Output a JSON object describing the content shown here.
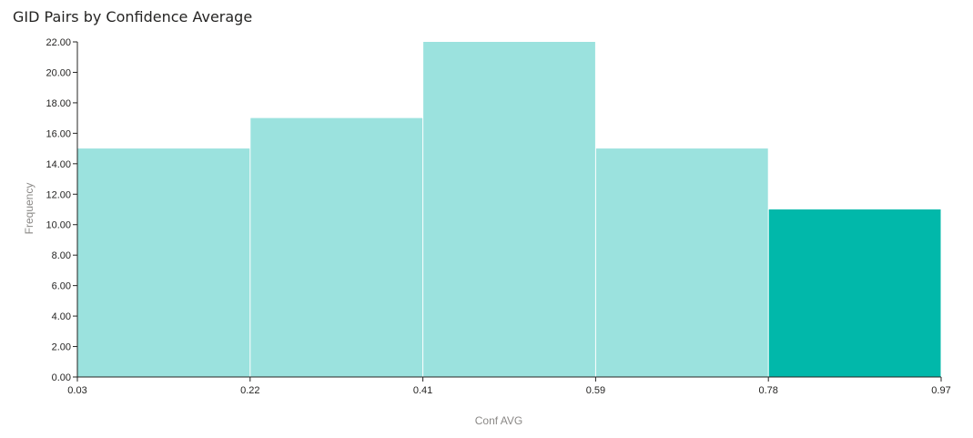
{
  "chart_data": {
    "type": "bar",
    "title": "GID Pairs by Confidence Average",
    "xlabel": "Conf AVG",
    "ylabel": "Frequency",
    "x_ticks": [
      "0.03",
      "0.22",
      "0.41",
      "0.59",
      "0.78",
      "0.97"
    ],
    "y_ticks": [
      "0.00",
      "2.00",
      "4.00",
      "6.00",
      "8.00",
      "10.00",
      "12.00",
      "14.00",
      "16.00",
      "18.00",
      "20.00",
      "22.00"
    ],
    "ylim": [
      0,
      22
    ],
    "bins": [
      {
        "from": 0.03,
        "to": 0.22,
        "value": 15,
        "highlighted": false
      },
      {
        "from": 0.22,
        "to": 0.41,
        "value": 17,
        "highlighted": false
      },
      {
        "from": 0.41,
        "to": 0.59,
        "value": 22,
        "highlighted": false
      },
      {
        "from": 0.59,
        "to": 0.78,
        "value": 15,
        "highlighted": false
      },
      {
        "from": 0.78,
        "to": 0.97,
        "value": 11,
        "highlighted": true
      }
    ],
    "colors": {
      "bar": "#9be2de",
      "bar_highlight": "#01b8aa",
      "axis": "#252423"
    }
  }
}
